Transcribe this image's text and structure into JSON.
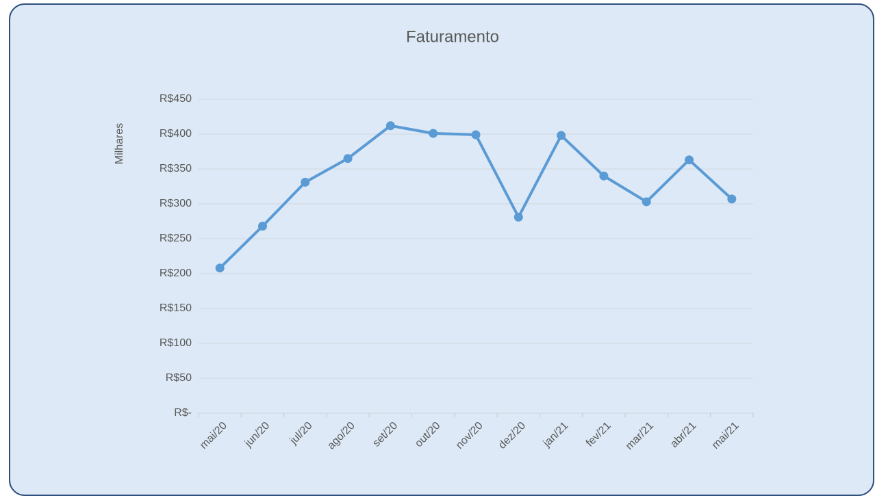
{
  "chart_data": {
    "type": "line",
    "title": "Faturamento",
    "y_label": "Milhares",
    "categories": [
      "mai/20",
      "jun/20",
      "jul/20",
      "ago/20",
      "set/20",
      "out/20",
      "nov/20",
      "dez/20",
      "jan/21",
      "fev/21",
      "mar/21",
      "abr/21",
      "mai/21"
    ],
    "series": [
      {
        "name": "Faturamento",
        "color": "#5b9bd5",
        "values": [
          208,
          268,
          331,
          365,
          412,
          401,
          399,
          281,
          398,
          340,
          303,
          363,
          307
        ]
      }
    ],
    "ylim": [
      0,
      450
    ],
    "yticks": [
      {
        "value": 0,
        "label": "R$-"
      },
      {
        "value": 50,
        "label": "R$50"
      },
      {
        "value": 100,
        "label": "R$100"
      },
      {
        "value": 150,
        "label": "R$150"
      },
      {
        "value": 200,
        "label": "R$200"
      },
      {
        "value": 250,
        "label": "R$250"
      },
      {
        "value": 300,
        "label": "R$300"
      },
      {
        "value": 350,
        "label": "R$350"
      },
      {
        "value": 400,
        "label": "R$400"
      },
      {
        "value": 450,
        "label": "R$450"
      }
    ],
    "grid": true
  }
}
